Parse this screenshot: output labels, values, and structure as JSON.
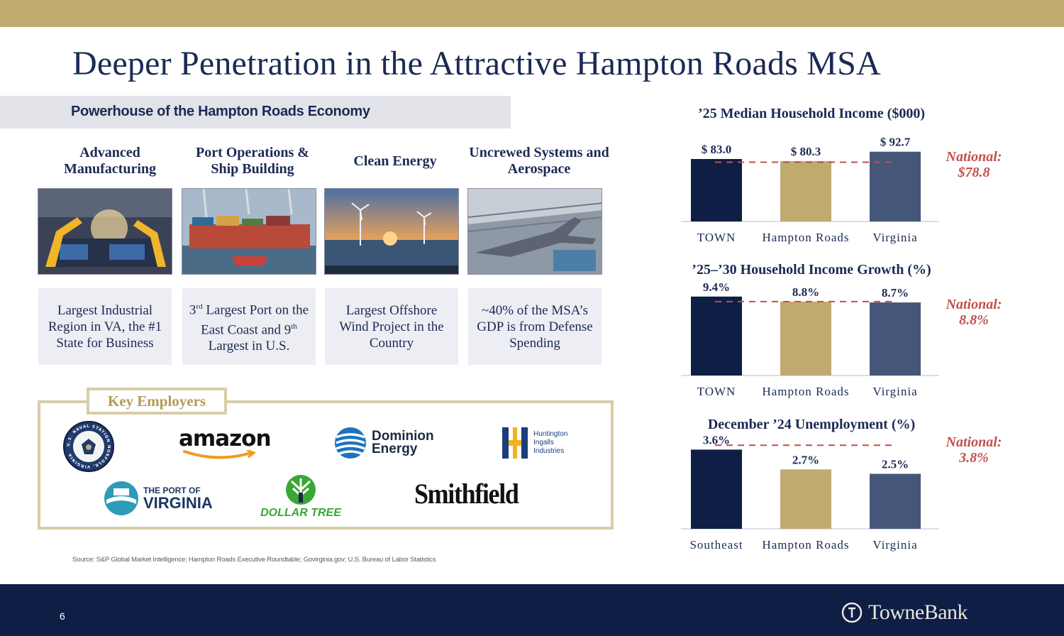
{
  "title": "Deeper Penetration in the Attractive Hampton Roads MSA",
  "section_header": "Powerhouse of the Hampton Roads Economy",
  "sectors": [
    {
      "label": "Advanced Manufacturing",
      "photo_icon": "robotic-factory-photo",
      "fact": "Largest Industrial Region in VA, the #1 State for Business"
    },
    {
      "label": "Port Operations & Ship Building",
      "photo_icon": "container-port-photo",
      "fact_parts": [
        "3",
        "rd",
        " Largest Port on the East Coast and 9",
        "th",
        " Largest in U.S."
      ]
    },
    {
      "label": "Clean Energy",
      "photo_icon": "offshore-wind-photo",
      "fact": "Largest Offshore Wind Project in the Country"
    },
    {
      "label": "Uncrewed Systems and Aerospace",
      "photo_icon": "aircraft-hangar-photo",
      "fact": "~40% of the MSA’s GDP is from Defense Spending"
    }
  ],
  "employers": {
    "tab_label": "Key Employers",
    "navy_seal": {
      "icon": "us-navy-seal-logo",
      "text": "U.S. NAVAL STATION NORFOLK, VIRGINIA"
    },
    "amazon": "amazon",
    "dominion": {
      "line1": "Dominion",
      "line2": "Energy"
    },
    "huntington": {
      "line1": "Huntington",
      "line2": "Ingalls",
      "line3": "Industries"
    },
    "port_virginia": {
      "line1": "THE PORT OF",
      "line2": "VIRGINIA"
    },
    "dollar_tree": "DOLLAR TREE",
    "smithfield": "Smithfield"
  },
  "source": "Source: S&P Global Market Intelligence; Hampton Roads Executive Roundtable; Govirginia.gov; U.S. Bureau of Labor Statistics",
  "page_number": "6",
  "brand": {
    "name": "TowneBank",
    "icon": "towne-bank-monogram"
  },
  "colors": {
    "navy": "#0e1e44",
    "gold": "#c0aa6f",
    "slate": "#445778",
    "red": "#c0504d"
  },
  "chart_data": [
    {
      "type": "bar",
      "title": "’25 Median Household Income ($000)",
      "categories": [
        "TOWN",
        "Hampton Roads",
        "Virginia"
      ],
      "values": [
        83.0,
        80.3,
        92.7
      ],
      "value_labels": [
        "$ 83.0",
        "$ 80.3",
        "$ 92.7"
      ],
      "reference_line": 78.8,
      "reference_label": [
        "National:",
        "$78.8"
      ],
      "ylim": [
        0,
        100
      ]
    },
    {
      "type": "bar",
      "title": "’25–’30 Household Income Growth (%)",
      "categories": [
        "TOWN",
        "Hampton Roads",
        "Virginia"
      ],
      "values": [
        9.4,
        8.8,
        8.7
      ],
      "value_labels": [
        "9.4%",
        "8.8%",
        "8.7%"
      ],
      "reference_line": 8.8,
      "reference_label": [
        "National:",
        "8.8%"
      ],
      "ylim": [
        0,
        10.4
      ]
    },
    {
      "type": "bar",
      "title": "December ’24 Unemployment (%)",
      "categories": [
        "Southeast",
        "Hampton Roads",
        "Virginia"
      ],
      "values": [
        3.6,
        2.7,
        2.5
      ],
      "value_labels": [
        "3.6%",
        "2.7%",
        "2.5%"
      ],
      "reference_line": 3.8,
      "reference_label": [
        "National:",
        "3.8%"
      ],
      "ylim": [
        0,
        4.0
      ]
    }
  ]
}
